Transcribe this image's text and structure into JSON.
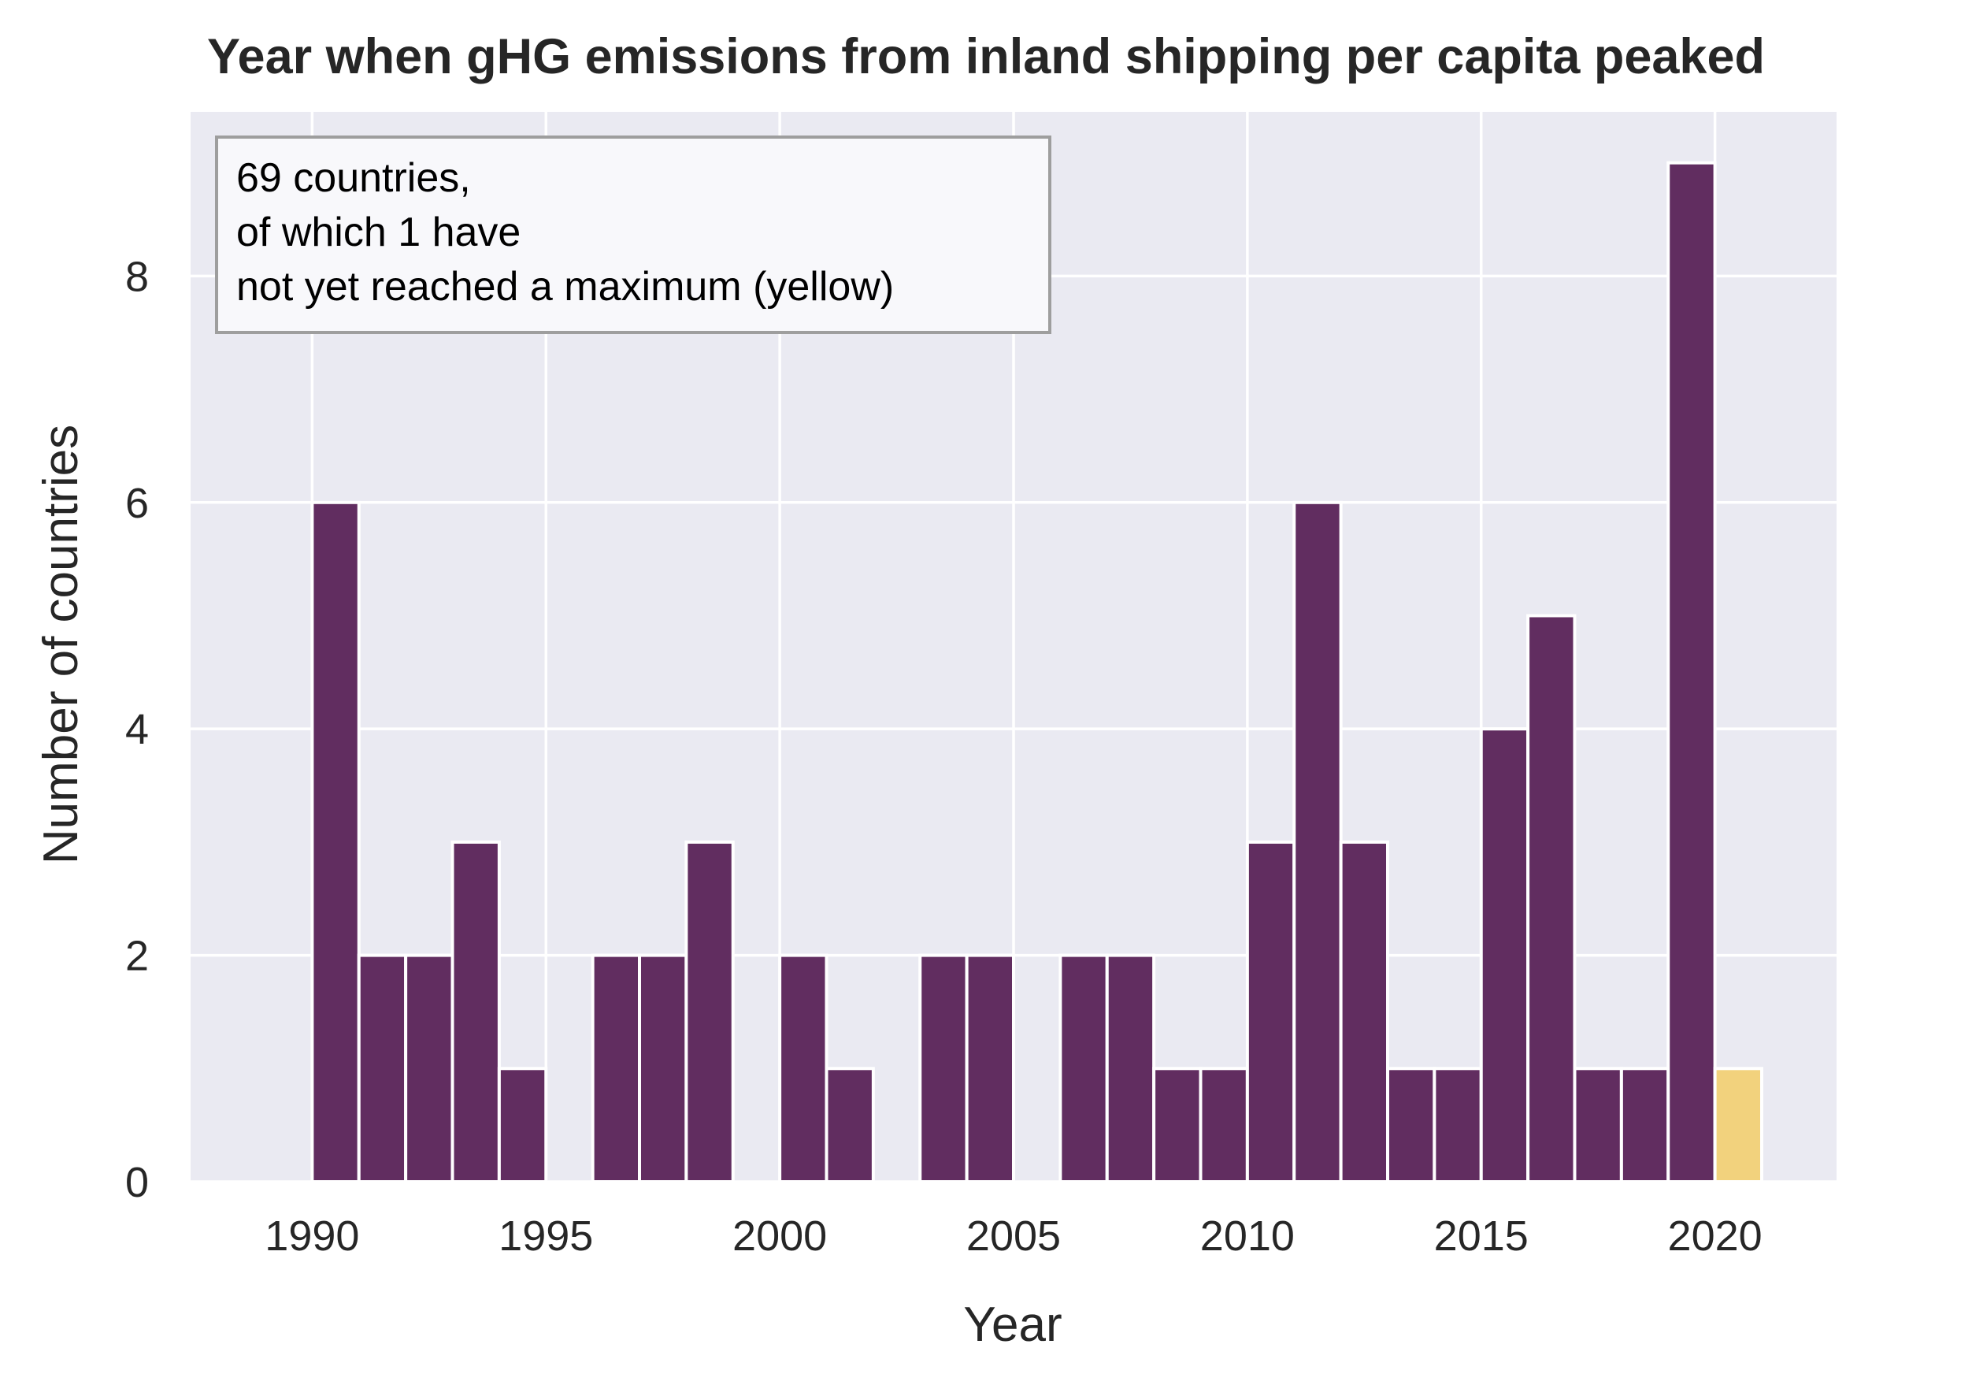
{
  "chart_data": {
    "type": "bar",
    "title": "Year when gHG emissions from inland shipping per capita peaked",
    "xlabel": "Year",
    "ylabel": "Number of countries",
    "xlim": [
      1987.4,
      2022.6
    ],
    "ylim": [
      0,
      9.45
    ],
    "x_ticks": [
      1990,
      1995,
      2000,
      2005,
      2010,
      2015,
      2020
    ],
    "y_ticks": [
      0,
      2,
      4,
      6,
      8
    ],
    "grid": true,
    "bin_width": 1,
    "series": [
      {
        "name": "peaked",
        "color": "#612d60",
        "x": [
          1990,
          1991,
          1992,
          1993,
          1994,
          1995,
          1996,
          1997,
          1998,
          1999,
          2000,
          2001,
          2002,
          2003,
          2004,
          2005,
          2006,
          2007,
          2008,
          2009,
          2010,
          2011,
          2012,
          2013,
          2014,
          2015,
          2016,
          2017,
          2018,
          2019,
          2020
        ],
        "values": [
          6,
          2,
          2,
          3,
          1,
          0,
          2,
          2,
          3,
          0,
          2,
          1,
          0,
          2,
          2,
          0,
          2,
          2,
          1,
          1,
          3,
          6,
          3,
          1,
          1,
          4,
          5,
          1,
          1,
          9,
          0
        ]
      },
      {
        "name": "not yet reached a maximum",
        "color": "#f2d27d",
        "x": [
          2020
        ],
        "values": [
          1
        ]
      }
    ],
    "annotation": {
      "lines": [
        "69 countries,",
        "of which 1 have",
        "not yet reached a maximum (yellow)"
      ],
      "placement": "top-left"
    }
  }
}
